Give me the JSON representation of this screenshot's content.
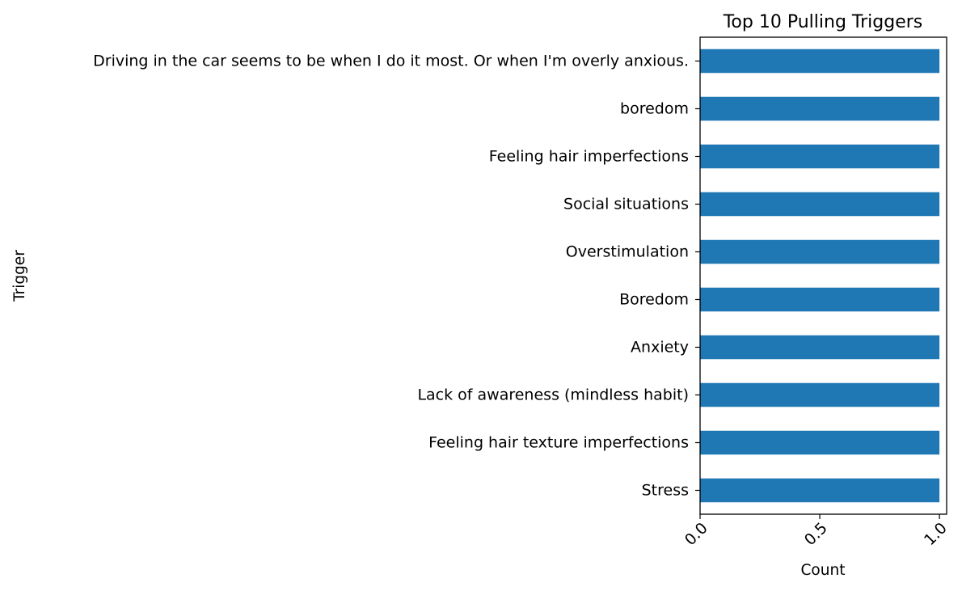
{
  "chart_data": {
    "type": "bar",
    "orientation": "horizontal",
    "title": "Top 10 Pulling Triggers",
    "xlabel": "Count",
    "ylabel": "Trigger",
    "categories": [
      "Driving in the car seems to be when I do it most. Or when I'm overly anxious.",
      "boredom",
      "Feeling hair imperfections",
      "Social situations",
      "Overstimulation",
      "Boredom",
      "Anxiety",
      "Lack of awareness (mindless habit)",
      "Feeling hair texture imperfections",
      "Stress"
    ],
    "values": [
      1,
      1,
      1,
      1,
      1,
      1,
      1,
      1,
      1,
      1
    ],
    "xlim": [
      0,
      1.03
    ],
    "xticks": [
      "0.0",
      "0.5",
      "1.0"
    ],
    "xtick_values": [
      0,
      0.5,
      1.0
    ],
    "xtick_rotation": 45,
    "grid": false,
    "legend": "none",
    "bar_color": "#1f77b4"
  }
}
